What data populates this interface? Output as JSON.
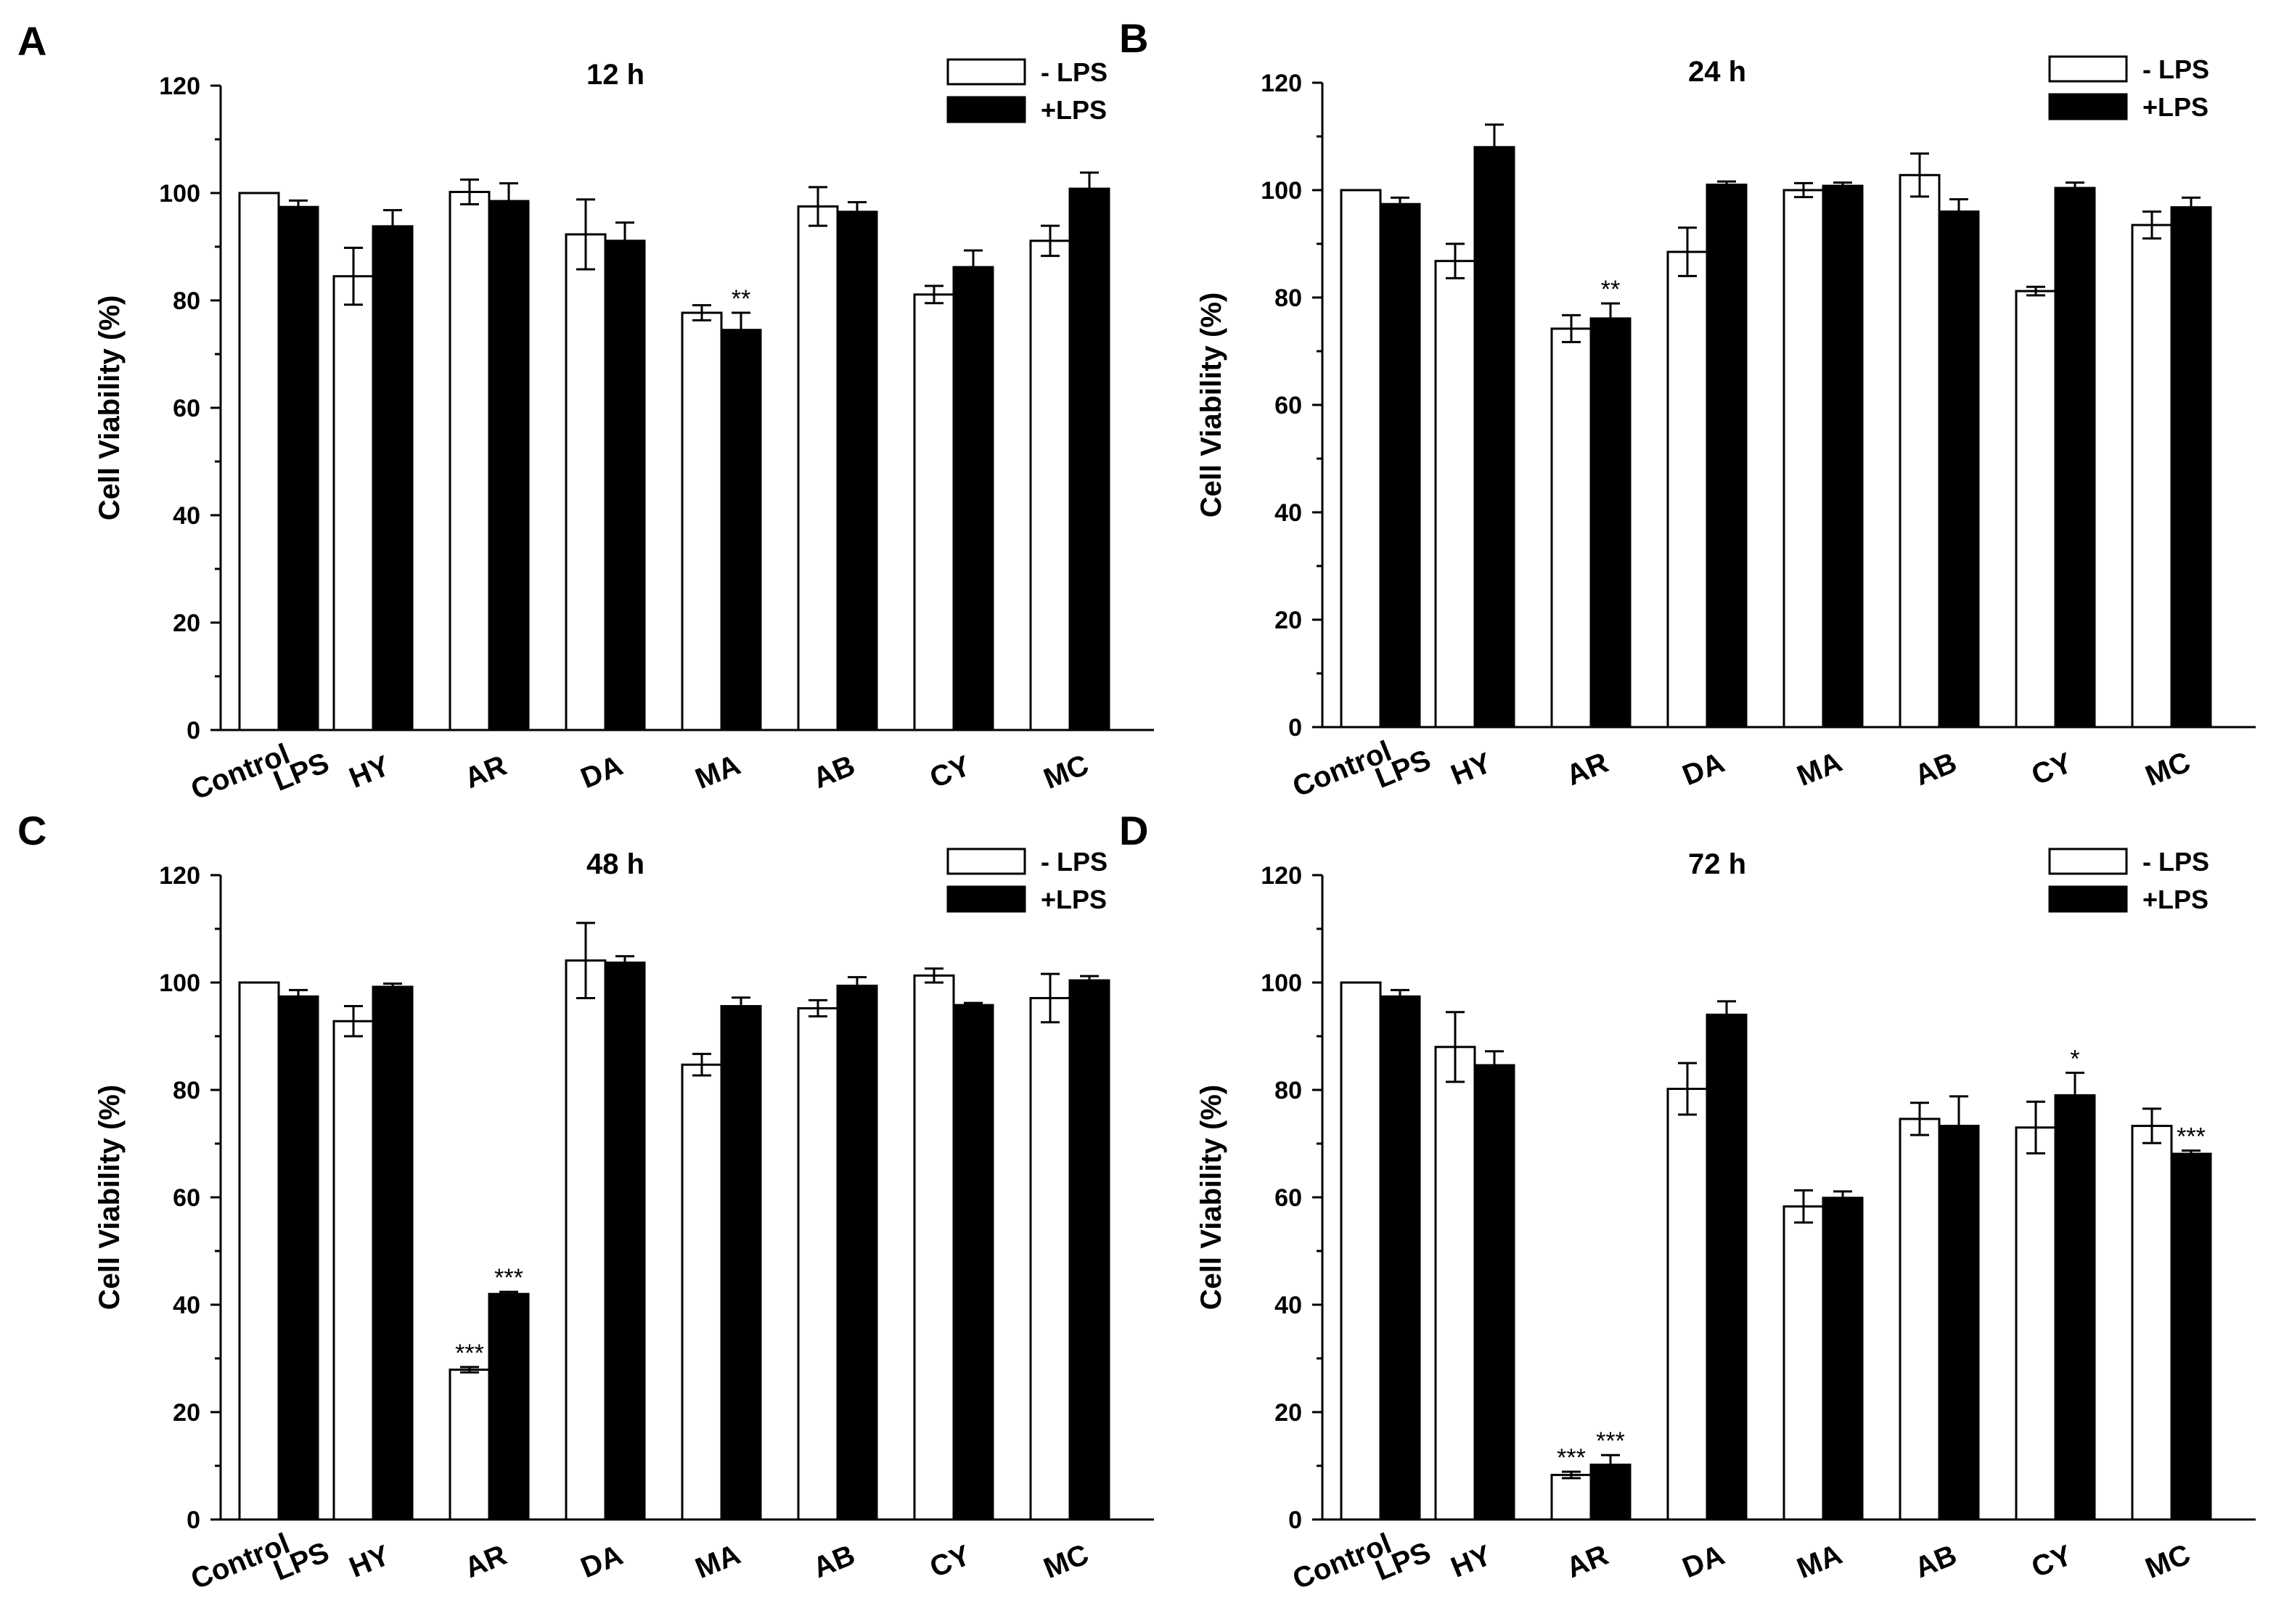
{
  "figure": {
    "legend_series_labels": [
      "- LPS",
      "+LPS"
    ],
    "colors": {
      "minus_lps_fill": "#ffffff",
      "plus_lps_fill": "#000000",
      "axis": "#000000"
    }
  },
  "chart_data": [
    {
      "panel": "A",
      "type": "bar",
      "title": "12 h",
      "xlabel": "",
      "ylabel": "Cell Viability (%)",
      "ylim": [
        0,
        120
      ],
      "yticks": [
        0,
        20,
        40,
        60,
        80,
        100,
        120
      ],
      "grid": false,
      "legend": "top-right",
      "categories": [
        "Control",
        "LPS",
        "HY",
        "AR",
        "DA",
        "MA",
        "AB",
        "CY",
        "MC"
      ],
      "series": [
        {
          "name": "- LPS",
          "values": [
            100,
            null,
            84.5,
            100.2,
            92.3,
            77.7,
            97.5,
            81.1,
            91.1
          ],
          "errors": [
            0,
            null,
            5.3,
            2.3,
            6.5,
            1.4,
            3.6,
            1.6,
            2.8
          ],
          "significance": [
            "",
            "",
            "",
            "",
            "",
            "",
            "",
            "",
            ""
          ]
        },
        {
          "name": "+LPS",
          "values": [
            null,
            97.4,
            93.8,
            98.5,
            91.1,
            74.5,
            96.5,
            86.2,
            100.8
          ],
          "errors": [
            null,
            1.2,
            3,
            3.3,
            3.4,
            3.2,
            1.8,
            3.1,
            3
          ],
          "significance": [
            "",
            "",
            "",
            "",
            "",
            "**",
            "",
            "",
            ""
          ]
        }
      ]
    },
    {
      "panel": "B",
      "type": "bar",
      "title": "24 h",
      "xlabel": "",
      "ylabel": "Cell Viability (%)",
      "ylim": [
        0,
        120
      ],
      "yticks": [
        0,
        20,
        40,
        60,
        80,
        100,
        120
      ],
      "grid": false,
      "legend": "top-right",
      "categories": [
        "Control",
        "LPS",
        "HY",
        "AR",
        "DA",
        "MA",
        "AB",
        "CY",
        "MC"
      ],
      "series": [
        {
          "name": "- LPS",
          "values": [
            100,
            null,
            86.8,
            74.2,
            88.5,
            100,
            102.8,
            81.2,
            93.5
          ],
          "errors": [
            0,
            null,
            3.2,
            2.5,
            4.5,
            1.3,
            4,
            0.8,
            2.5
          ],
          "significance": [
            "",
            "",
            "",
            "",
            "",
            "",
            "",
            "",
            ""
          ]
        },
        {
          "name": "+LPS",
          "values": [
            null,
            97.4,
            108,
            76.1,
            101,
            100.8,
            96,
            100.4,
            96.8
          ],
          "errors": [
            null,
            1.2,
            4.2,
            2.8,
            0.6,
            0.6,
            2.3,
            1,
            1.8
          ],
          "significance": [
            "",
            "",
            "",
            "**",
            "",
            "",
            "",
            "",
            ""
          ]
        }
      ]
    },
    {
      "panel": "C",
      "type": "bar",
      "title": "48 h",
      "xlabel": "",
      "ylabel": "Cell Viability (%)",
      "ylim": [
        0,
        120
      ],
      "yticks": [
        0,
        20,
        40,
        60,
        80,
        100,
        120
      ],
      "grid": false,
      "legend": "top-right",
      "categories": [
        "Control",
        "LPS",
        "HY",
        "AR",
        "DA",
        "MA",
        "AB",
        "CY",
        "MC"
      ],
      "series": [
        {
          "name": "- LPS",
          "values": [
            100,
            null,
            92.8,
            27.9,
            104.1,
            84.7,
            95.2,
            101.3,
            97.1
          ],
          "errors": [
            0,
            null,
            2.8,
            0.5,
            7,
            2,
            1.5,
            1.3,
            4.5
          ],
          "significance": [
            "",
            "",
            "",
            "***",
            "",
            "",
            "",
            "",
            ""
          ]
        },
        {
          "name": "+LPS",
          "values": [
            null,
            97.4,
            99.2,
            42,
            103.7,
            95.6,
            99.4,
            95.8,
            100.4
          ],
          "errors": [
            null,
            1.2,
            0.6,
            0.4,
            1.2,
            1.6,
            1.6,
            0.4,
            0.8
          ],
          "significance": [
            "",
            "",
            "",
            "***",
            "",
            "",
            "",
            "",
            ""
          ]
        }
      ]
    },
    {
      "panel": "D",
      "type": "bar",
      "title": "72 h",
      "xlabel": "",
      "ylabel": "Cell Viability (%)",
      "ylim": [
        0,
        120
      ],
      "yticks": [
        0,
        20,
        40,
        60,
        80,
        100,
        120
      ],
      "grid": false,
      "legend": "top-right",
      "categories": [
        "Control",
        "LPS",
        "HY",
        "AR",
        "DA",
        "MA",
        "AB",
        "CY",
        "MC"
      ],
      "series": [
        {
          "name": "- LPS",
          "values": [
            100,
            null,
            88,
            8.3,
            80.2,
            58.3,
            74.6,
            73,
            73.3
          ],
          "errors": [
            0,
            null,
            6.5,
            0.6,
            4.8,
            3,
            3,
            4.8,
            3.2
          ],
          "significance": [
            "",
            "",
            "",
            "***",
            "",
            "",
            "",
            "",
            ""
          ]
        },
        {
          "name": "+LPS",
          "values": [
            null,
            97.4,
            84.6,
            10.2,
            94,
            59.9,
            73.3,
            79,
            68.1
          ],
          "errors": [
            null,
            1.2,
            2.6,
            1.8,
            2.5,
            1.2,
            5.5,
            4.2,
            0.6
          ],
          "significance": [
            "",
            "",
            "",
            "***",
            "",
            "",
            "",
            "*",
            "***"
          ]
        }
      ]
    }
  ]
}
